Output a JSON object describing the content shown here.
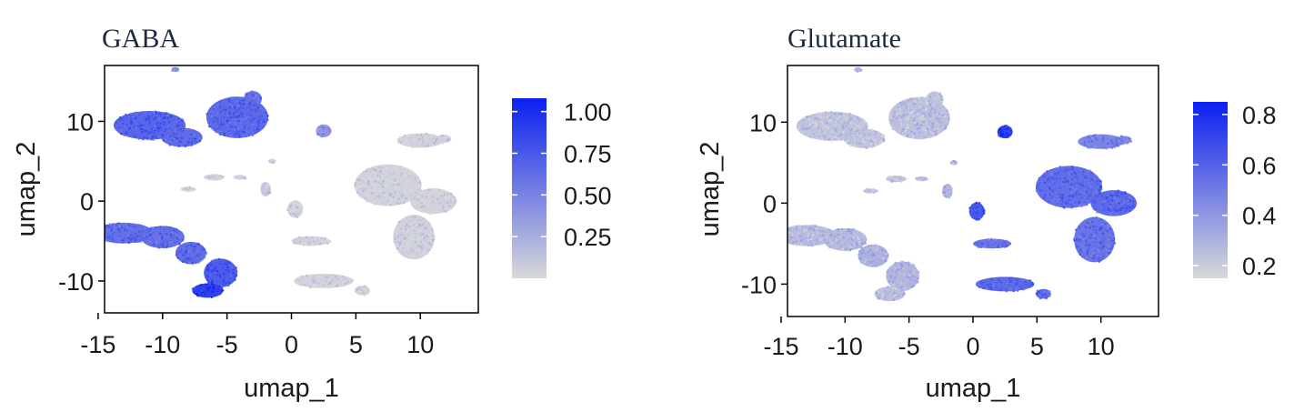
{
  "chart_data": [
    {
      "type": "scatter",
      "title": "GABA",
      "xlabel": "umap_1",
      "ylabel": "umap_2",
      "xlim": [
        -14.5,
        14.5
      ],
      "ylim": [
        -14,
        17
      ],
      "xticks": [
        -15,
        -10,
        -5,
        0,
        5,
        10
      ],
      "xtick_labels": [
        "-15",
        "-10",
        "-5",
        "0",
        "5",
        "10"
      ],
      "yticks": [
        10,
        0,
        -10
      ],
      "ytick_labels": [
        "10",
        "0",
        "-10"
      ],
      "colorbar": {
        "min": 0.0,
        "max": 1.08,
        "ticks": [
          1.0,
          0.75,
          0.5,
          0.25
        ],
        "tick_labels": [
          "1.00",
          "0.75",
          "0.50",
          "0.25"
        ],
        "low_color": "#d9d9d9",
        "high_color": "#0a20f0"
      },
      "clusters": [
        {
          "x": -11,
          "y": 9.5,
          "rx": 2.8,
          "ry": 1.8,
          "value": 0.72
        },
        {
          "x": -8.5,
          "y": 8,
          "rx": 1.6,
          "ry": 1.2,
          "value": 0.68
        },
        {
          "x": -4.2,
          "y": 10.5,
          "rx": 2.4,
          "ry": 2.6,
          "value": 0.7
        },
        {
          "x": -3,
          "y": 12.8,
          "rx": 0.7,
          "ry": 1.0,
          "value": 0.66
        },
        {
          "x": -9,
          "y": 16.5,
          "rx": 0.3,
          "ry": 0.3,
          "value": 0.5
        },
        {
          "x": -13,
          "y": -4,
          "rx": 2.3,
          "ry": 1.3,
          "value": 0.66
        },
        {
          "x": -10,
          "y": -4.5,
          "rx": 1.7,
          "ry": 1.4,
          "value": 0.66
        },
        {
          "x": -7.8,
          "y": -6.5,
          "rx": 1.2,
          "ry": 1.4,
          "value": 0.68
        },
        {
          "x": -5.5,
          "y": -9,
          "rx": 1.3,
          "ry": 1.8,
          "value": 0.78
        },
        {
          "x": -6.5,
          "y": -11.2,
          "rx": 1.2,
          "ry": 0.9,
          "value": 0.95
        },
        {
          "x": 2.5,
          "y": 8.8,
          "rx": 0.6,
          "ry": 0.8,
          "value": 0.42
        },
        {
          "x": 10,
          "y": 7.6,
          "rx": 1.8,
          "ry": 0.9,
          "value": 0.05
        },
        {
          "x": 11.8,
          "y": 7.8,
          "rx": 0.6,
          "ry": 0.5,
          "value": 0.05
        },
        {
          "x": 7.5,
          "y": 2,
          "rx": 2.6,
          "ry": 2.6,
          "value": 0.05
        },
        {
          "x": 11,
          "y": 0,
          "rx": 1.8,
          "ry": 1.6,
          "value": 0.05
        },
        {
          "x": 9.5,
          "y": -4.5,
          "rx": 1.6,
          "ry": 2.8,
          "value": 0.06
        },
        {
          "x": 0.3,
          "y": -1,
          "rx": 0.6,
          "ry": 1.1,
          "value": 0.05
        },
        {
          "x": 1.5,
          "y": -5,
          "rx": 1.5,
          "ry": 0.6,
          "value": 0.05
        },
        {
          "x": 2.5,
          "y": -10,
          "rx": 2.3,
          "ry": 0.9,
          "value": 0.05
        },
        {
          "x": 5.5,
          "y": -11.2,
          "rx": 0.6,
          "ry": 0.6,
          "value": 0.05
        },
        {
          "x": -2,
          "y": 1.5,
          "rx": 0.4,
          "ry": 0.9,
          "value": 0.12
        },
        {
          "x": -6,
          "y": 3,
          "rx": 0.8,
          "ry": 0.4,
          "value": 0.06
        },
        {
          "x": -8,
          "y": 1.5,
          "rx": 0.6,
          "ry": 0.3,
          "value": 0.06
        },
        {
          "x": -4,
          "y": 3,
          "rx": 0.5,
          "ry": 0.3,
          "value": 0.06
        },
        {
          "x": -1.5,
          "y": 5,
          "rx": 0.3,
          "ry": 0.3,
          "value": 0.08
        }
      ]
    },
    {
      "type": "scatter",
      "title": "Glutamate",
      "xlabel": "umap_1",
      "ylabel": "umap_2",
      "xlim": [
        -14.5,
        14.5
      ],
      "ylim": [
        -14,
        17
      ],
      "xticks": [
        -15,
        -10,
        -5,
        0,
        5,
        10
      ],
      "xtick_labels": [
        "-15",
        "-10",
        "-5",
        "0",
        "5",
        "10"
      ],
      "yticks": [
        10,
        0,
        -10
      ],
      "ytick_labels": [
        "10",
        "0",
        "-10"
      ],
      "colorbar": {
        "min": 0.15,
        "max": 0.85,
        "ticks": [
          0.8,
          0.6,
          0.4,
          0.2
        ],
        "tick_labels": [
          "0.8",
          "0.6",
          "0.4",
          "0.2"
        ],
        "low_color": "#d9d9d9",
        "high_color": "#0a20f0"
      },
      "clusters": [
        {
          "x": -11,
          "y": 9.5,
          "rx": 2.8,
          "ry": 1.8,
          "value": 0.24
        },
        {
          "x": -8.5,
          "y": 8,
          "rx": 1.6,
          "ry": 1.2,
          "value": 0.24
        },
        {
          "x": -4.2,
          "y": 10.5,
          "rx": 2.4,
          "ry": 2.6,
          "value": 0.26
        },
        {
          "x": -3,
          "y": 12.8,
          "rx": 0.7,
          "ry": 1.0,
          "value": 0.24
        },
        {
          "x": -9,
          "y": 16.5,
          "rx": 0.3,
          "ry": 0.3,
          "value": 0.3
        },
        {
          "x": -13,
          "y": -4,
          "rx": 2.3,
          "ry": 1.3,
          "value": 0.28
        },
        {
          "x": -10,
          "y": -4.5,
          "rx": 1.7,
          "ry": 1.4,
          "value": 0.28
        },
        {
          "x": -7.8,
          "y": -6.5,
          "rx": 1.2,
          "ry": 1.4,
          "value": 0.32
        },
        {
          "x": -5.5,
          "y": -9,
          "rx": 1.3,
          "ry": 1.8,
          "value": 0.3
        },
        {
          "x": -6.5,
          "y": -11.2,
          "rx": 1.2,
          "ry": 0.9,
          "value": 0.26
        },
        {
          "x": 2.5,
          "y": 8.8,
          "rx": 0.6,
          "ry": 0.8,
          "value": 0.78
        },
        {
          "x": 10,
          "y": 7.6,
          "rx": 1.8,
          "ry": 0.9,
          "value": 0.5
        },
        {
          "x": 11.8,
          "y": 7.8,
          "rx": 0.6,
          "ry": 0.5,
          "value": 0.48
        },
        {
          "x": 7.5,
          "y": 2,
          "rx": 2.6,
          "ry": 2.6,
          "value": 0.58
        },
        {
          "x": 11,
          "y": 0,
          "rx": 1.8,
          "ry": 1.6,
          "value": 0.6
        },
        {
          "x": 9.5,
          "y": -4.5,
          "rx": 1.6,
          "ry": 2.8,
          "value": 0.56
        },
        {
          "x": 0.3,
          "y": -1,
          "rx": 0.6,
          "ry": 1.1,
          "value": 0.68
        },
        {
          "x": 1.5,
          "y": -5,
          "rx": 1.5,
          "ry": 0.6,
          "value": 0.56
        },
        {
          "x": 2.5,
          "y": -10,
          "rx": 2.3,
          "ry": 0.9,
          "value": 0.6
        },
        {
          "x": 5.5,
          "y": -11.2,
          "rx": 0.6,
          "ry": 0.6,
          "value": 0.6
        },
        {
          "x": -2,
          "y": 1.5,
          "rx": 0.4,
          "ry": 0.9,
          "value": 0.3
        },
        {
          "x": -6,
          "y": 3,
          "rx": 0.8,
          "ry": 0.4,
          "value": 0.25
        },
        {
          "x": -8,
          "y": 1.5,
          "rx": 0.6,
          "ry": 0.3,
          "value": 0.25
        },
        {
          "x": -4,
          "y": 3,
          "rx": 0.5,
          "ry": 0.3,
          "value": 0.25
        },
        {
          "x": -1.5,
          "y": 5,
          "rx": 0.3,
          "ry": 0.3,
          "value": 0.3
        }
      ]
    }
  ]
}
